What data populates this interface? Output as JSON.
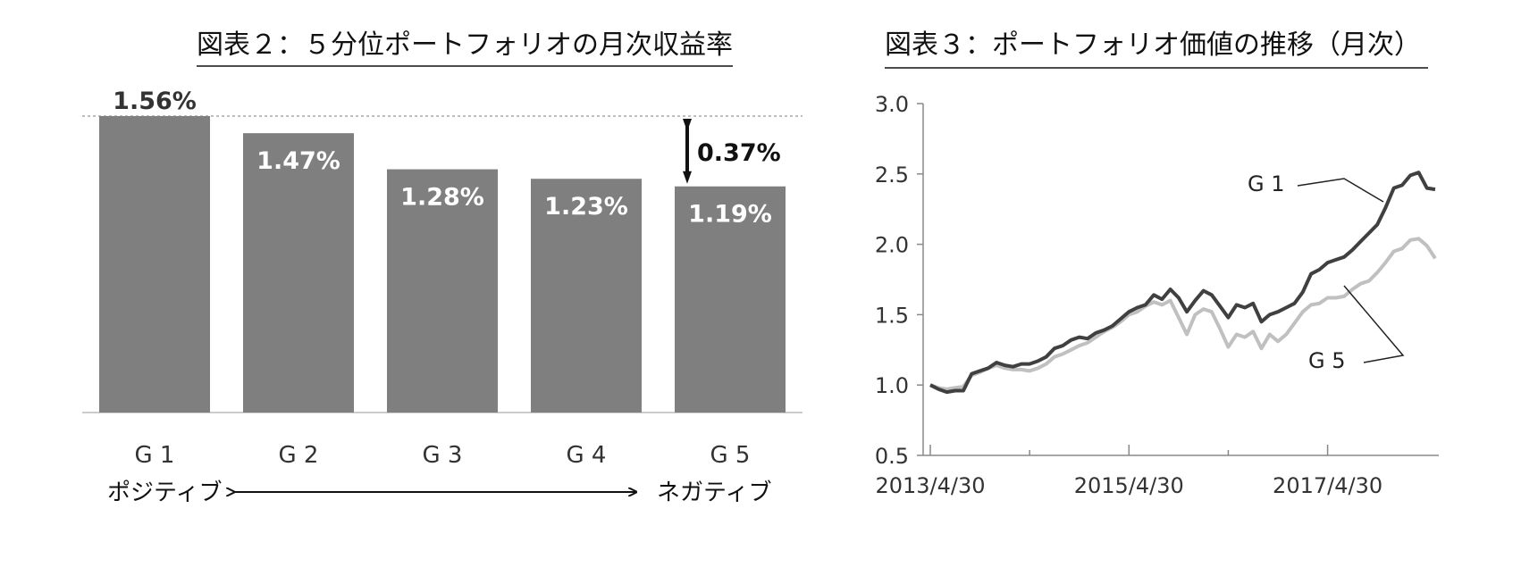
{
  "chart_data": [
    {
      "type": "bar",
      "title": "図表２：５分位ポートフォリオの月次収益率",
      "categories": [
        "G 1",
        "G 2",
        "G 3",
        "G 4",
        "G 5"
      ],
      "values": [
        1.56,
        1.47,
        1.28,
        1.23,
        1.19
      ],
      "value_labels": [
        "1.56%",
        "1.47%",
        "1.28%",
        "1.23%",
        "1.19%"
      ],
      "ylim": [
        0,
        1.56
      ],
      "difference_label": "0.37%",
      "axis_left_label": "ポジティブ",
      "axis_right_label": "ネガティブ",
      "bar_color": "#7f7f7f"
    },
    {
      "type": "line",
      "title": "図表３：ポートフォリオ価値の推移（月次）",
      "ylim": [
        0.5,
        3.0
      ],
      "yticks": [
        "0.5",
        "1.0",
        "1.5",
        "2.0",
        "2.5",
        "3.0"
      ],
      "xtick_labels": [
        "2013/4/30",
        "2015/4/30",
        "2017/4/30"
      ],
      "series": [
        {
          "name": "G 1",
          "color": "#404040",
          "values": [
            1.0,
            0.97,
            0.95,
            0.96,
            0.96,
            1.08,
            1.1,
            1.12,
            1.16,
            1.14,
            1.13,
            1.15,
            1.15,
            1.17,
            1.2,
            1.26,
            1.28,
            1.32,
            1.34,
            1.33,
            1.37,
            1.39,
            1.42,
            1.47,
            1.52,
            1.55,
            1.57,
            1.64,
            1.61,
            1.68,
            1.62,
            1.52,
            1.6,
            1.67,
            1.64,
            1.56,
            1.48,
            1.57,
            1.55,
            1.58,
            1.45,
            1.5,
            1.52,
            1.55,
            1.58,
            1.66,
            1.79,
            1.82,
            1.87,
            1.89,
            1.91,
            1.96,
            2.02,
            2.08,
            2.14,
            2.26,
            2.4,
            2.42,
            2.49,
            2.51,
            2.4,
            2.39
          ]
        },
        {
          "name": "G 5",
          "color": "#c0c0c0",
          "values": [
            1.0,
            0.98,
            0.97,
            0.98,
            0.99,
            1.07,
            1.09,
            1.12,
            1.14,
            1.12,
            1.11,
            1.11,
            1.1,
            1.12,
            1.15,
            1.2,
            1.22,
            1.25,
            1.28,
            1.3,
            1.34,
            1.38,
            1.41,
            1.45,
            1.5,
            1.52,
            1.56,
            1.59,
            1.57,
            1.6,
            1.48,
            1.36,
            1.5,
            1.54,
            1.52,
            1.4,
            1.27,
            1.36,
            1.34,
            1.38,
            1.26,
            1.36,
            1.31,
            1.36,
            1.44,
            1.52,
            1.57,
            1.58,
            1.62,
            1.62,
            1.63,
            1.68,
            1.72,
            1.74,
            1.8,
            1.87,
            1.95,
            1.97,
            2.03,
            2.04,
            1.99,
            1.9
          ]
        }
      ]
    }
  ]
}
